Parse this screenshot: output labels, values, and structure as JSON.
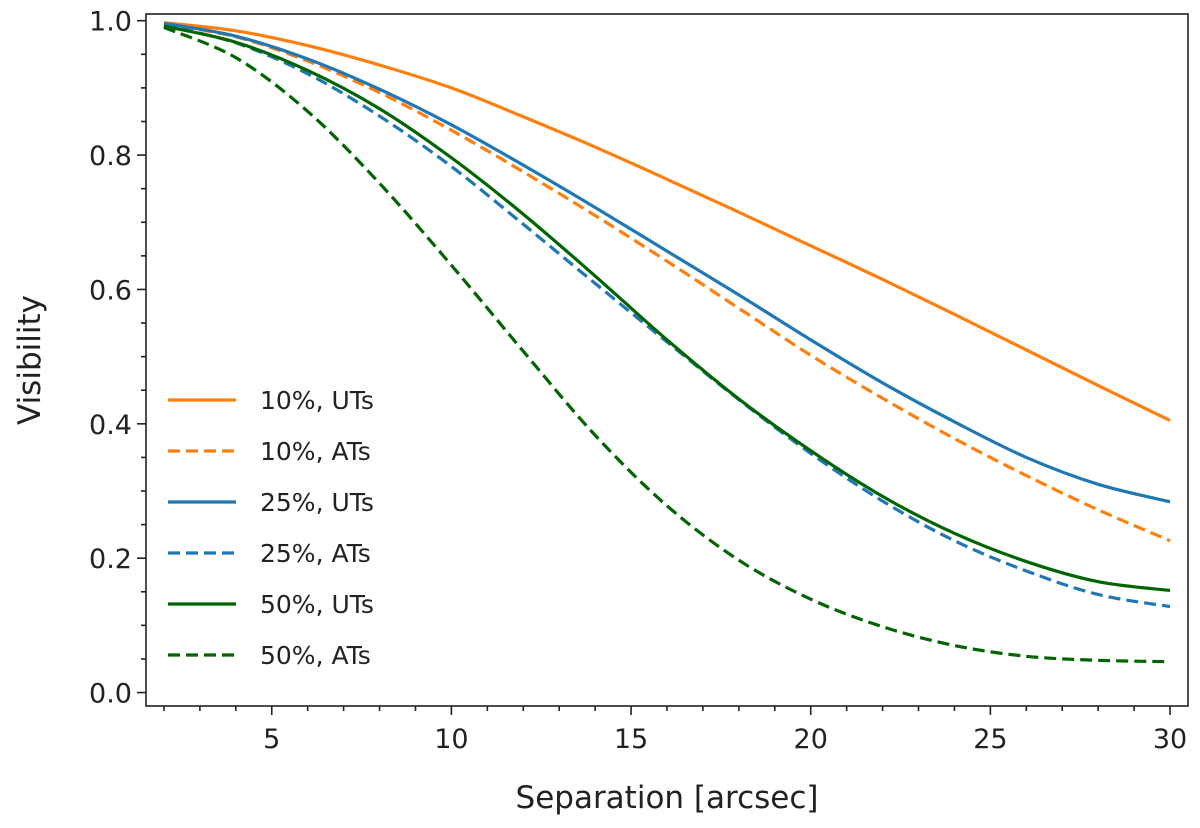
{
  "chart_data": {
    "type": "line",
    "title": "",
    "xlabel": "Separation [arcsec]",
    "ylabel": "Visibility",
    "xlim": [
      1.5,
      30.5
    ],
    "ylim": [
      -0.02,
      1.01
    ],
    "x_ticks": [
      5,
      10,
      15,
      20,
      25,
      30
    ],
    "x_tick_labels": [
      "5",
      "10",
      "15",
      "20",
      "25",
      "30"
    ],
    "y_ticks": [
      0.0,
      0.2,
      0.4,
      0.6,
      0.8,
      1.0
    ],
    "y_tick_labels": [
      "0.0",
      "0.2",
      "0.4",
      "0.6",
      "0.8",
      "1.0"
    ],
    "x_minor_step": 1,
    "y_minor_step": 0.05,
    "grid": false,
    "legend_position": "center-left",
    "x": [
      2,
      4,
      6,
      8,
      10,
      12,
      14,
      16,
      18,
      20,
      22,
      24,
      26,
      28,
      30
    ],
    "series": [
      {
        "name": "10%, UTs",
        "color": "#ff7f0e",
        "style": "solid",
        "values": [
          0.997,
          0.985,
          0.963,
          0.934,
          0.9,
          0.857,
          0.812,
          0.764,
          0.715,
          0.665,
          0.615,
          0.563,
          0.51,
          0.457,
          0.405
        ]
      },
      {
        "name": "10%, ATs",
        "color": "#ff7f0e",
        "style": "dashed",
        "values": [
          0.995,
          0.976,
          0.94,
          0.893,
          0.837,
          0.775,
          0.71,
          0.642,
          0.572,
          0.502,
          0.438,
          0.378,
          0.323,
          0.272,
          0.226
        ]
      },
      {
        "name": "25%, UTs",
        "color": "#1f77b4",
        "style": "solid",
        "values": [
          0.996,
          0.977,
          0.943,
          0.898,
          0.845,
          0.785,
          0.722,
          0.657,
          0.592,
          0.525,
          0.461,
          0.403,
          0.35,
          0.31,
          0.284
        ]
      },
      {
        "name": "25%, ATs",
        "color": "#1f77b4",
        "style": "dashed",
        "values": [
          0.993,
          0.967,
          0.921,
          0.858,
          0.783,
          0.697,
          0.609,
          0.522,
          0.436,
          0.356,
          0.285,
          0.226,
          0.181,
          0.146,
          0.128
        ]
      },
      {
        "name": "50%, UTs",
        "color": "#006400",
        "style": "solid",
        "values": [
          0.992,
          0.968,
          0.926,
          0.869,
          0.796,
          0.712,
          0.62,
          0.525,
          0.437,
          0.36,
          0.292,
          0.237,
          0.195,
          0.165,
          0.152
        ]
      },
      {
        "name": "50%, ATs",
        "color": "#006400",
        "style": "dashed",
        "values": [
          0.99,
          0.945,
          0.865,
          0.758,
          0.636,
          0.508,
          0.383,
          0.278,
          0.197,
          0.139,
          0.098,
          0.07,
          0.054,
          0.048,
          0.046
        ]
      }
    ]
  }
}
